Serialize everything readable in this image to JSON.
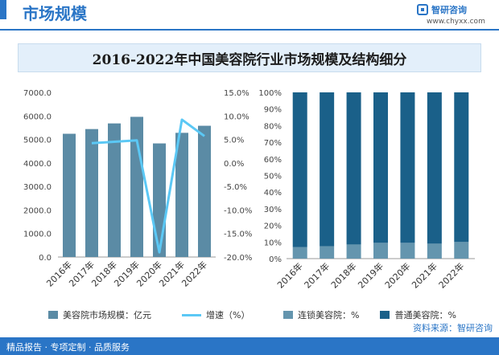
{
  "header": {
    "title": "市场规模",
    "logo_text": "智研咨询",
    "logo_url": "www.chyxx.com"
  },
  "footer": {
    "left_text": "精品报告 · 专项定制 · 品质服务",
    "source": "资料来源：智研咨询"
  },
  "colors": {
    "bar": "#5b8ba5",
    "line": "#5bc8f5",
    "stack_dark": "#1a6089",
    "stack_light": "#6495ae"
  },
  "chart_data": [
    {
      "type": "bar",
      "title": "2016-2022年中国美容院行业市场规模及结构细分",
      "categories": [
        "2016年",
        "2017年",
        "2018年",
        "2019年",
        "2020年",
        "2021年",
        "2022年"
      ],
      "series": [
        {
          "name": "美容院市场规模：亿元",
          "type": "bar",
          "axis": "left",
          "values": [
            5240,
            5440,
            5680,
            5960,
            4830,
            5280,
            5580
          ]
        },
        {
          "name": "增速（%）",
          "type": "line",
          "axis": "right",
          "values": [
            3.5,
            4.2,
            4.5,
            4.8,
            -19.0,
            9.2,
            5.7
          ]
        }
      ],
      "yleft": {
        "range": [
          0,
          7000
        ],
        "ticks": [
          "0.0",
          "1000.0",
          "2000.0",
          "3000.0",
          "4000.0",
          "5000.0",
          "6000.0",
          "7000.0"
        ]
      },
      "yright": {
        "range": [
          -20,
          15
        ],
        "ticks": [
          "-20.0%",
          "-15.0%",
          "-10.0%",
          "-5.0%",
          "0.0%",
          "5.0%",
          "10.0%",
          "15.0%"
        ]
      }
    },
    {
      "type": "bar",
      "stacked": true,
      "categories": [
        "2016年",
        "2017年",
        "2018年",
        "2019年",
        "2020年",
        "2021年",
        "2022年"
      ],
      "series": [
        {
          "name": "连锁美容院：%",
          "values": [
            7,
            7.5,
            8.5,
            9.5,
            9.5,
            9,
            10
          ]
        },
        {
          "name": "普通美容院：%",
          "values": [
            93,
            92.5,
            91.5,
            90.5,
            90.5,
            91,
            90
          ]
        }
      ],
      "y": {
        "range": [
          0,
          100
        ],
        "ticks": [
          "0%",
          "10%",
          "20%",
          "30%",
          "40%",
          "50%",
          "60%",
          "70%",
          "80%",
          "90%",
          "100%"
        ]
      }
    }
  ]
}
